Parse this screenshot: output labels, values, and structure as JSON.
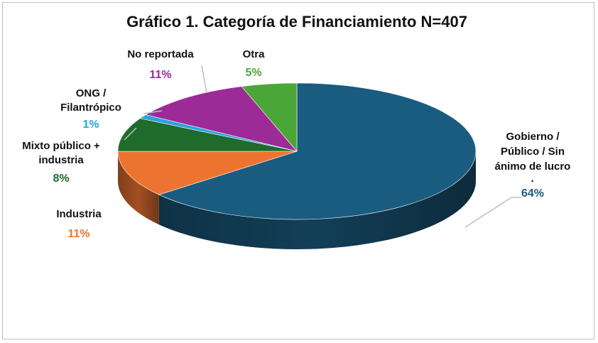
{
  "chart_data": {
    "type": "pie",
    "title": "Gráfico 1. Categoría de Financiamiento N=407",
    "slices": [
      {
        "key": "gobierno",
        "label_lines": [
          "Gobierno /",
          "Público / Sin",
          "ánimo de lucro",
          "·"
        ],
        "percent_label": "64%",
        "value": 64,
        "color": "#1a5c80"
      },
      {
        "key": "industria",
        "label_lines": [
          "Industria"
        ],
        "percent_label": "11%",
        "value": 11,
        "color": "#ed7430"
      },
      {
        "key": "mixto",
        "label_lines": [
          "Mixto público +",
          "industria"
        ],
        "percent_label": "8%",
        "value": 8,
        "color": "#1e6b2c"
      },
      {
        "key": "ong",
        "label_lines": [
          "ONG /",
          "Filantrópico"
        ],
        "percent_label": "1%",
        "value": 1,
        "color": "#2aa3dc"
      },
      {
        "key": "noreportada",
        "label_lines": [
          "No reportada"
        ],
        "percent_label": "11%",
        "value": 11,
        "color": "#9c2b97"
      },
      {
        "key": "otra",
        "label_lines": [
          "Otra"
        ],
        "percent_label": "5%",
        "value": 5,
        "color": "#4aa636"
      }
    ]
  }
}
